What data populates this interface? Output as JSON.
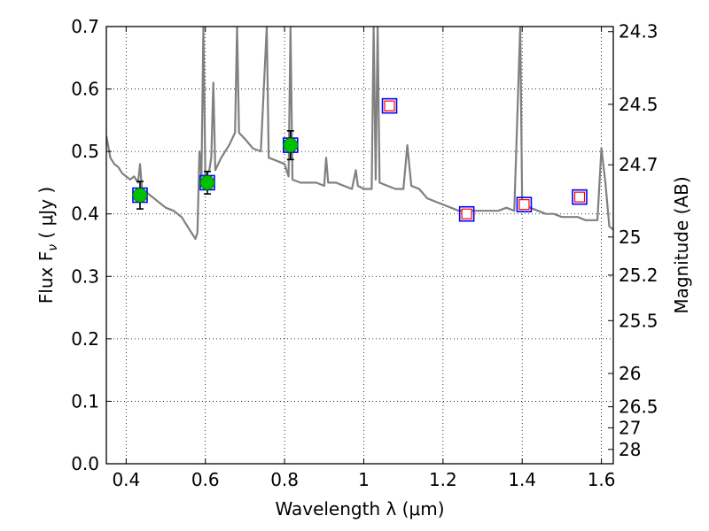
{
  "chart_data": {
    "type": "scatter",
    "xlabel": "Wavelength  λ (μm)",
    "ylabel": "Flux  F",
    "ylabel_sub": "ν",
    "ylabel_unit": "  ( μJy )",
    "y2label": "Magnitude (AB)",
    "xlim": [
      0.35,
      1.63
    ],
    "ylim": [
      0.0,
      0.7
    ],
    "grid": true,
    "x_ticks": [
      0.4,
      0.6,
      0.8,
      1.0,
      1.2,
      1.4,
      1.6
    ],
    "x_tick_labels": [
      "0.4",
      "0.6",
      "0.8",
      "1",
      "1.2",
      "1.4",
      "1.6"
    ],
    "y_ticks": [
      0.0,
      0.1,
      0.2,
      0.3,
      0.4,
      0.5,
      0.6,
      0.7
    ],
    "y_tick_labels": [
      "0.0",
      "0.1",
      "0.2",
      "0.3",
      "0.4",
      "0.5",
      "0.6",
      "0.7"
    ],
    "y2_tick_labels": [
      "24.3",
      "24.5",
      "24.7",
      "25",
      "25.2",
      "25.5",
      "26",
      "26.5",
      "27",
      "28"
    ],
    "y2_tick_values": [
      24.3,
      24.5,
      24.7,
      25.0,
      25.2,
      25.5,
      26.0,
      26.5,
      27.0,
      28.0
    ],
    "colors": {
      "model": "#808080",
      "observed": "#00c000",
      "model_box": "#0000ff",
      "model_inner": "#ff0000",
      "errorbar": "#000000"
    },
    "model_spectrum": [
      [
        0.35,
        0.525
      ],
      [
        0.36,
        0.49
      ],
      [
        0.37,
        0.48
      ],
      [
        0.38,
        0.475
      ],
      [
        0.39,
        0.465
      ],
      [
        0.4,
        0.46
      ],
      [
        0.41,
        0.455
      ],
      [
        0.42,
        0.46
      ],
      [
        0.43,
        0.45
      ],
      [
        0.435,
        0.48
      ],
      [
        0.44,
        0.44
      ],
      [
        0.46,
        0.43
      ],
      [
        0.48,
        0.42
      ],
      [
        0.5,
        0.41
      ],
      [
        0.52,
        0.405
      ],
      [
        0.54,
        0.395
      ],
      [
        0.56,
        0.375
      ],
      [
        0.57,
        0.365
      ],
      [
        0.575,
        0.36
      ],
      [
        0.58,
        0.37
      ],
      [
        0.585,
        0.5
      ],
      [
        0.59,
        0.46
      ],
      [
        0.595,
        0.7
      ],
      [
        0.6,
        0.46
      ],
      [
        0.61,
        0.47
      ],
      [
        0.615,
        0.49
      ],
      [
        0.62,
        0.61
      ],
      [
        0.625,
        0.47
      ],
      [
        0.64,
        0.49
      ],
      [
        0.66,
        0.51
      ],
      [
        0.675,
        0.53
      ],
      [
        0.68,
        0.7
      ],
      [
        0.685,
        0.53
      ],
      [
        0.7,
        0.52
      ],
      [
        0.72,
        0.505
      ],
      [
        0.74,
        0.5
      ],
      [
        0.755,
        0.7
      ],
      [
        0.76,
        0.49
      ],
      [
        0.78,
        0.485
      ],
      [
        0.8,
        0.48
      ],
      [
        0.81,
        0.46
      ],
      [
        0.815,
        0.7
      ],
      [
        0.82,
        0.455
      ],
      [
        0.84,
        0.45
      ],
      [
        0.86,
        0.45
      ],
      [
        0.88,
        0.45
      ],
      [
        0.9,
        0.445
      ],
      [
        0.905,
        0.49
      ],
      [
        0.91,
        0.45
      ],
      [
        0.93,
        0.45
      ],
      [
        0.95,
        0.445
      ],
      [
        0.97,
        0.44
      ],
      [
        0.98,
        0.47
      ],
      [
        0.985,
        0.445
      ],
      [
        1.0,
        0.44
      ],
      [
        1.02,
        0.44
      ],
      [
        1.025,
        0.7
      ],
      [
        1.03,
        0.455
      ],
      [
        1.035,
        0.7
      ],
      [
        1.04,
        0.45
      ],
      [
        1.06,
        0.445
      ],
      [
        1.08,
        0.44
      ],
      [
        1.1,
        0.44
      ],
      [
        1.11,
        0.51
      ],
      [
        1.12,
        0.445
      ],
      [
        1.14,
        0.44
      ],
      [
        1.16,
        0.425
      ],
      [
        1.18,
        0.42
      ],
      [
        1.2,
        0.415
      ],
      [
        1.22,
        0.41
      ],
      [
        1.24,
        0.405
      ],
      [
        1.26,
        0.405
      ],
      [
        1.28,
        0.405
      ],
      [
        1.3,
        0.405
      ],
      [
        1.32,
        0.405
      ],
      [
        1.34,
        0.405
      ],
      [
        1.36,
        0.41
      ],
      [
        1.38,
        0.405
      ],
      [
        1.395,
        0.7
      ],
      [
        1.4,
        0.415
      ],
      [
        1.42,
        0.41
      ],
      [
        1.44,
        0.405
      ],
      [
        1.46,
        0.4
      ],
      [
        1.48,
        0.4
      ],
      [
        1.5,
        0.395
      ],
      [
        1.52,
        0.395
      ],
      [
        1.54,
        0.395
      ],
      [
        1.56,
        0.39
      ],
      [
        1.58,
        0.39
      ],
      [
        1.59,
        0.39
      ],
      [
        1.6,
        0.505
      ],
      [
        1.61,
        0.45
      ],
      [
        1.62,
        0.38
      ],
      [
        1.63,
        0.375
      ]
    ],
    "observed_points": [
      {
        "x": 0.435,
        "y": 0.43,
        "yerr": 0.022
      },
      {
        "x": 0.605,
        "y": 0.45,
        "yerr": 0.018
      },
      {
        "x": 0.815,
        "y": 0.51,
        "yerr": 0.023
      }
    ],
    "model_photometry": [
      {
        "x": 0.435,
        "y": 0.43
      },
      {
        "x": 0.605,
        "y": 0.45
      },
      {
        "x": 0.815,
        "y": 0.51
      },
      {
        "x": 1.065,
        "y": 0.573
      },
      {
        "x": 1.26,
        "y": 0.4
      },
      {
        "x": 1.405,
        "y": 0.415
      },
      {
        "x": 1.545,
        "y": 0.427
      }
    ],
    "upper_limits": [
      {
        "x": 1.065,
        "y": 0.573
      },
      {
        "x": 1.26,
        "y": 0.4
      },
      {
        "x": 1.405,
        "y": 0.415
      },
      {
        "x": 1.545,
        "y": 0.427
      }
    ]
  }
}
